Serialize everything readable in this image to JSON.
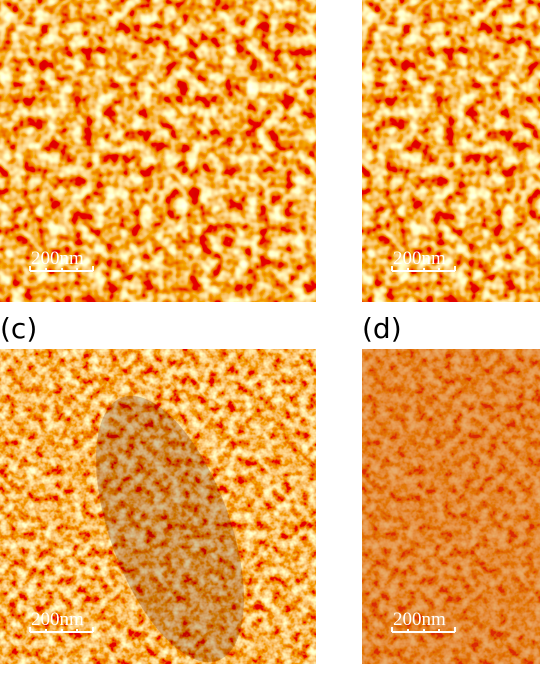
{
  "panels": [
    {
      "scale_bar": "200nm"
    },
    {
      "scale_bar": "200nm"
    },
    {
      "label": "(c)",
      "scale_bar": "200nm"
    },
    {
      "label": "(d)",
      "scale_bar": "200nm"
    }
  ]
}
